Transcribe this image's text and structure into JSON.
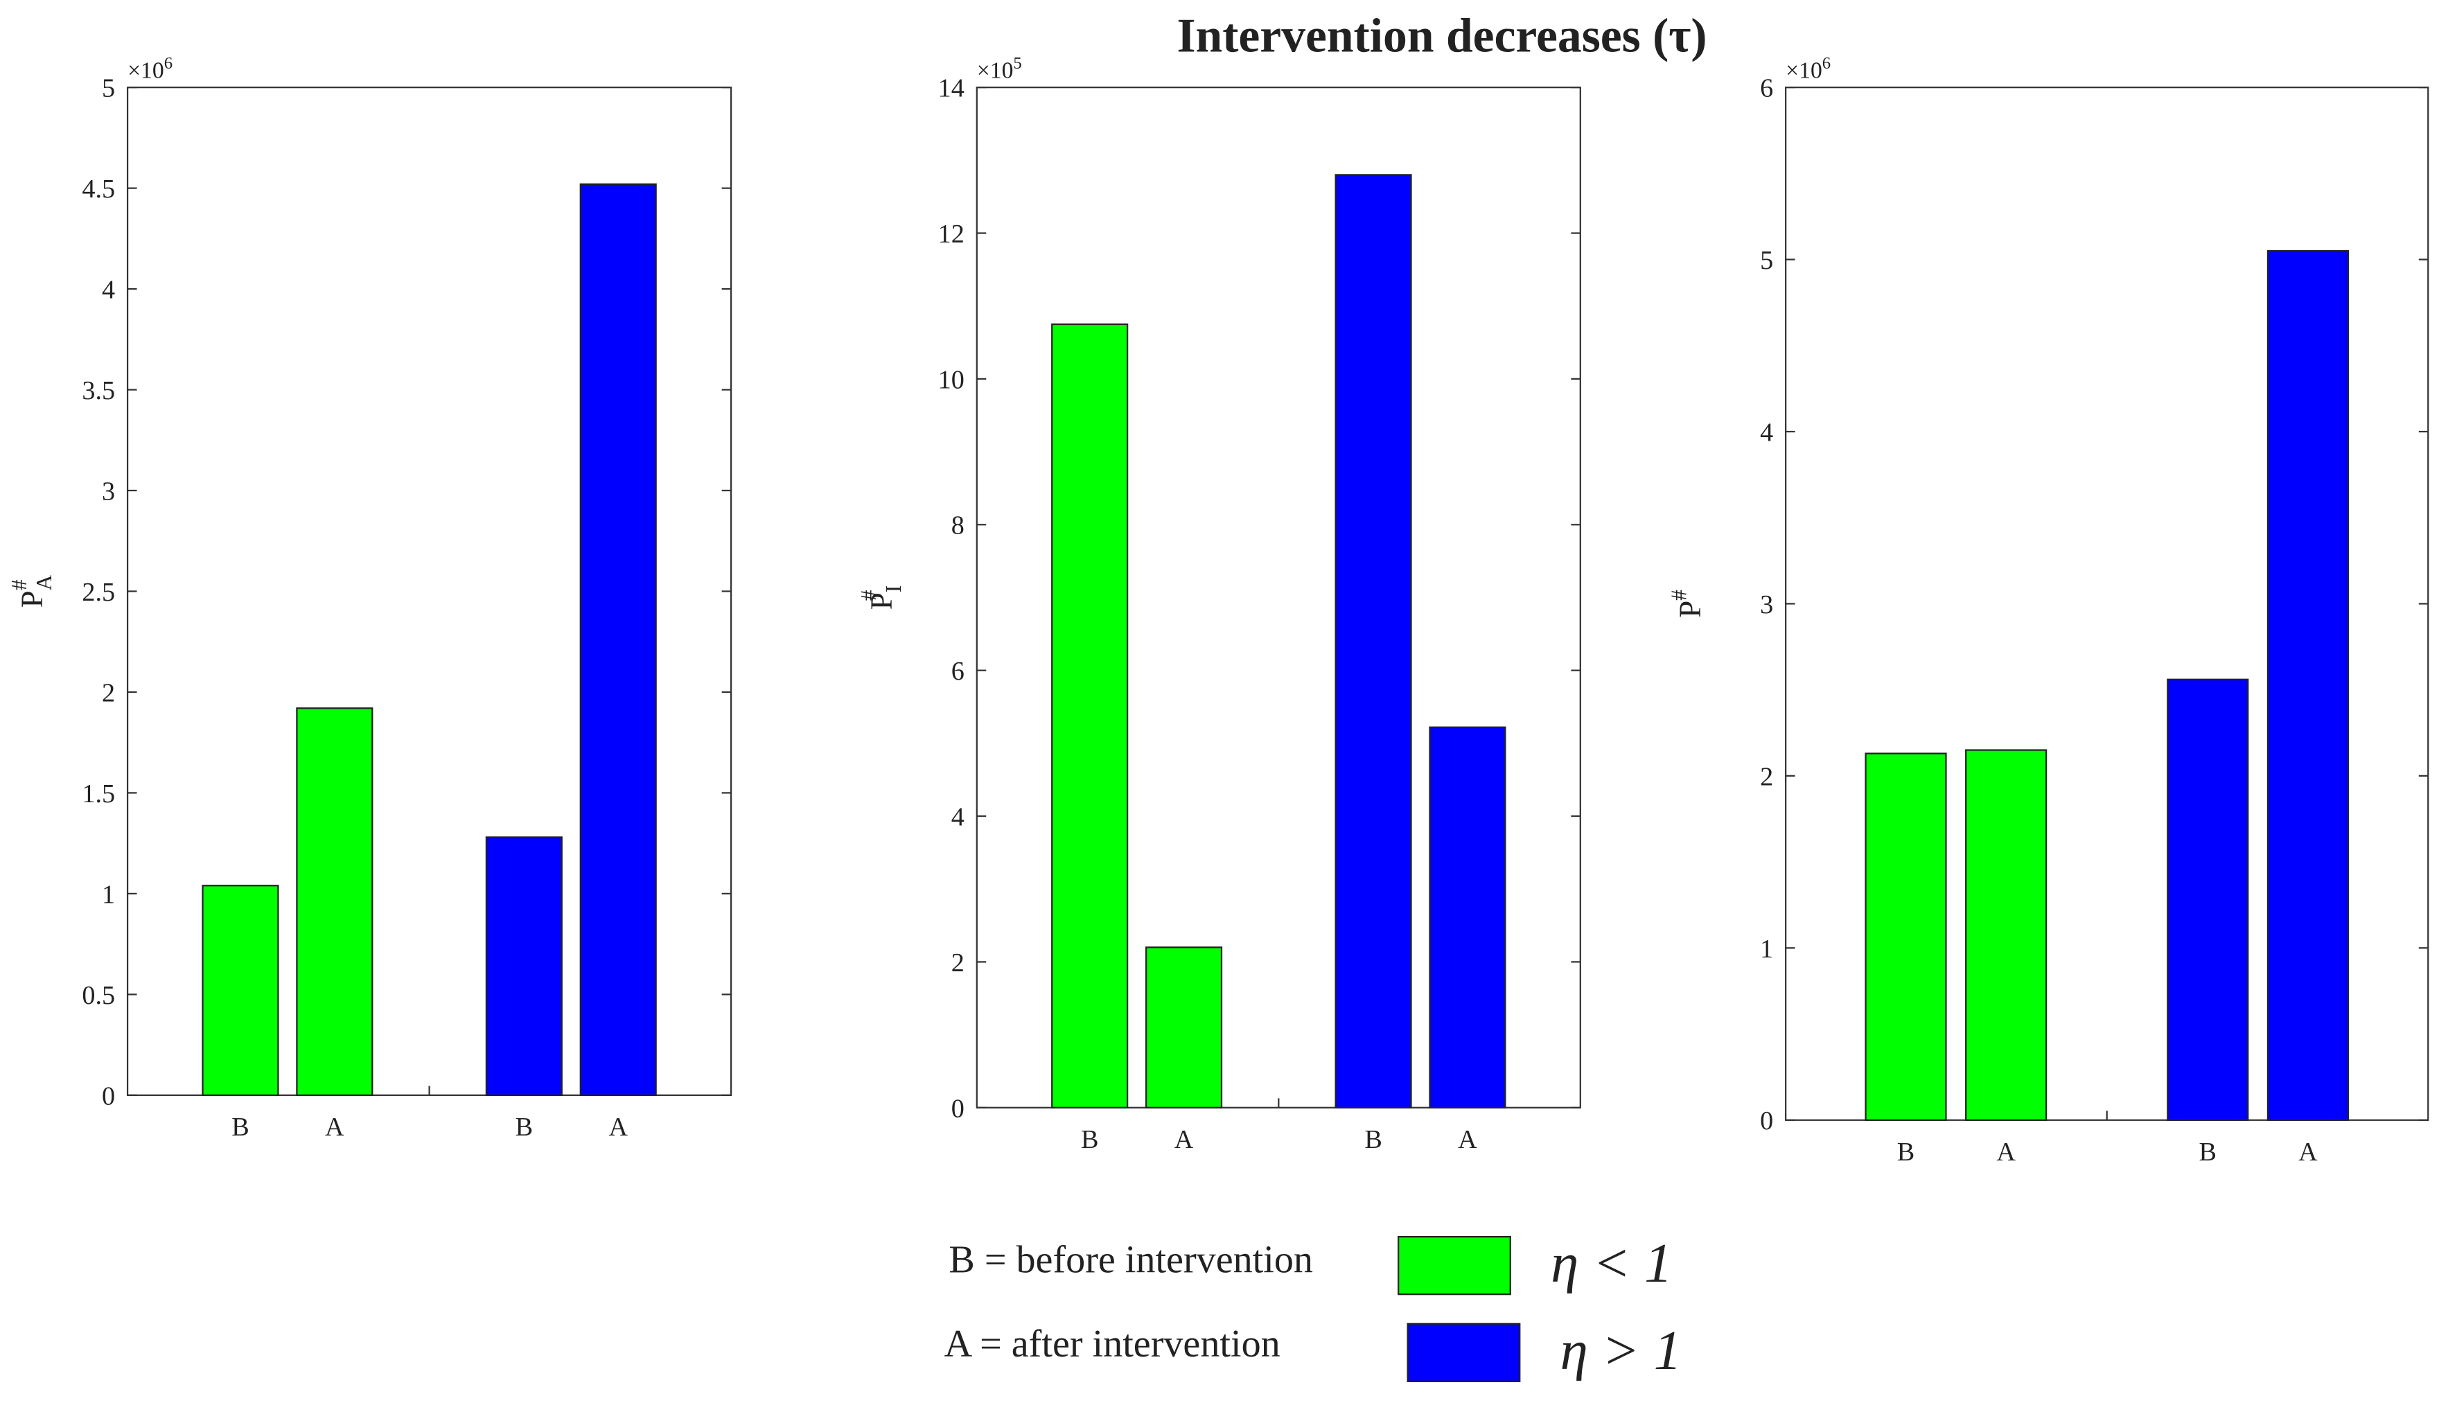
{
  "title": "Intervention decreases (τ)",
  "chart_data": [
    {
      "type": "bar",
      "categories": [
        "B",
        "A"
      ],
      "ylabel": {
        "base": "P",
        "sup": "#",
        "sub": "A"
      },
      "y_multiplier": {
        "base": "×10",
        "exp": "6"
      },
      "ylim": [
        0,
        5
      ],
      "yticks": [
        0,
        0.5,
        1,
        1.5,
        2,
        2.5,
        3,
        3.5,
        4,
        4.5,
        5
      ],
      "series": [
        {
          "name": "η < 1",
          "color": "#00ff00",
          "values": [
            1.04,
            1.92
          ]
        },
        {
          "name": "η > 1",
          "color": "#0000ff",
          "values": [
            1.28,
            4.52
          ]
        }
      ]
    },
    {
      "type": "bar",
      "categories": [
        "B",
        "A"
      ],
      "ylabel": {
        "base": "P",
        "sup": "#",
        "sub": "I"
      },
      "y_multiplier": {
        "base": "×10",
        "exp": "5"
      },
      "ylim": [
        0,
        14
      ],
      "yticks": [
        0,
        2,
        4,
        6,
        8,
        10,
        12,
        14
      ],
      "series": [
        {
          "name": "η < 1",
          "color": "#00ff00",
          "values": [
            10.75,
            2.2
          ]
        },
        {
          "name": "η > 1",
          "color": "#0000ff",
          "values": [
            12.8,
            5.22
          ]
        }
      ]
    },
    {
      "type": "bar",
      "categories": [
        "B",
        "A"
      ],
      "ylabel": {
        "base": "P",
        "sup": "#"
      },
      "y_multiplier": {
        "base": "×10",
        "exp": "6"
      },
      "ylim": [
        0,
        6
      ],
      "yticks": [
        0,
        1,
        2,
        3,
        4,
        5,
        6
      ],
      "series": [
        {
          "name": "η < 1",
          "color": "#00ff00",
          "values": [
            2.13,
            2.15
          ]
        },
        {
          "name": "η > 1",
          "color": "#0000ff",
          "values": [
            2.56,
            5.05
          ]
        }
      ]
    }
  ],
  "legend_notes": [
    "B = before intervention",
    "A = after intervention"
  ]
}
